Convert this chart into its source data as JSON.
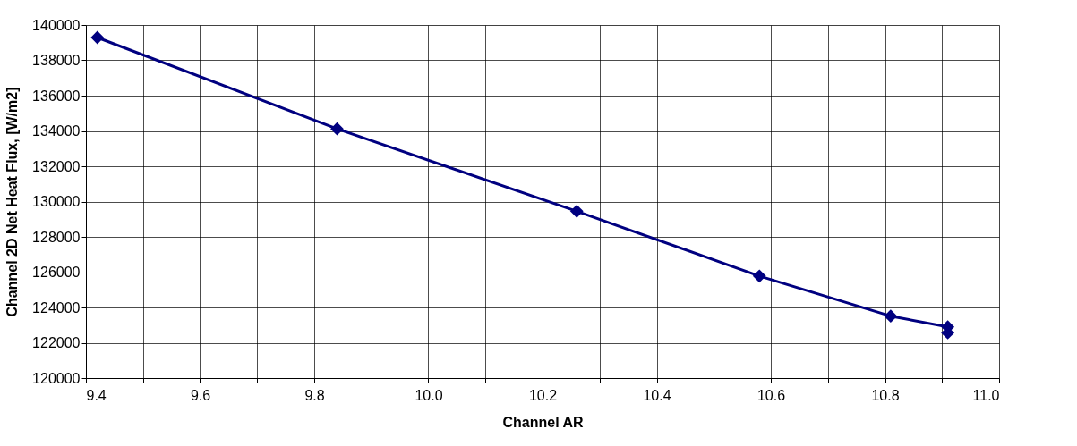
{
  "chart_data": {
    "type": "line",
    "xlabel": "Channel AR",
    "ylabel": "Channel 2D Net Heat Flux, [W/m2]",
    "x": [
      9.42,
      9.84,
      10.26,
      10.58,
      10.81,
      10.91,
      10.91
    ],
    "series": [
      {
        "color": "#000080",
        "values": [
          139290,
          134120,
          129450,
          125780,
          123510,
          122900,
          122560
        ]
      }
    ],
    "xlim": [
      9.4,
      11.0
    ],
    "xticks": [
      9.4,
      {
        "value": 9.5,
        "label": null
      },
      9.6,
      {
        "value": 9.7,
        "label": null
      },
      9.8,
      {
        "value": 9.9,
        "label": null
      },
      {
        "value": 10.0,
        "label": "10.0"
      },
      {
        "value": 10.1,
        "label": null
      },
      10.2,
      {
        "value": 10.3,
        "label": null
      },
      10.4,
      {
        "value": 10.5,
        "label": null
      },
      10.6,
      {
        "value": 10.7,
        "label": null
      },
      10.8,
      {
        "value": 10.9,
        "label": null
      },
      {
        "value": 11.0,
        "label": "11.0"
      }
    ],
    "ylim": [
      120000,
      140000
    ],
    "yticks": [
      120000,
      122000,
      124000,
      126000,
      128000,
      130000,
      132000,
      134000,
      136000,
      138000,
      140000
    ],
    "grid": true,
    "marker": "diamond",
    "line_style": "solid"
  }
}
